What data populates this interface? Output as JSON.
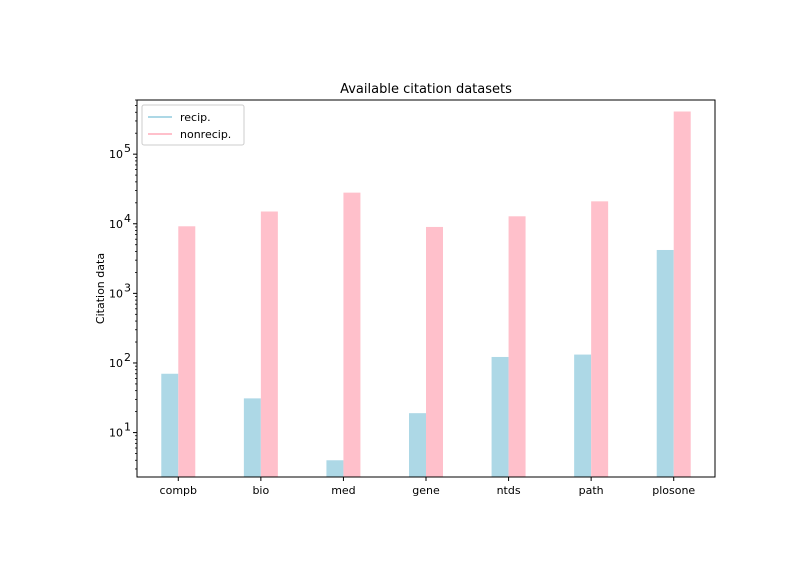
{
  "chart_data": {
    "type": "bar",
    "title": "Available citation datasets",
    "xlabel": "",
    "ylabel": "Citation data",
    "yscale": "log",
    "ylim": [
      2.3,
      600000
    ],
    "grid": false,
    "legend_position": "top-left",
    "categories": [
      "compb",
      "bio",
      "med",
      "gene",
      "ntds",
      "path",
      "plosone"
    ],
    "series": [
      {
        "name": "recip.",
        "color": "#add8e6",
        "values": [
          70,
          31,
          4,
          19,
          122,
          132,
          4200
        ]
      },
      {
        "name": "nonrecip.",
        "color": "#ffc0cb",
        "values": [
          9200,
          15000,
          28000,
          9000,
          12800,
          21000,
          410000
        ]
      }
    ],
    "yticks": [
      {
        "value": 10,
        "base": "10",
        "exp": "1"
      },
      {
        "value": 100,
        "base": "10",
        "exp": "2"
      },
      {
        "value": 1000,
        "base": "10",
        "exp": "3"
      },
      {
        "value": 10000,
        "base": "10",
        "exp": "4"
      },
      {
        "value": 100000,
        "base": "10",
        "exp": "5"
      }
    ]
  }
}
